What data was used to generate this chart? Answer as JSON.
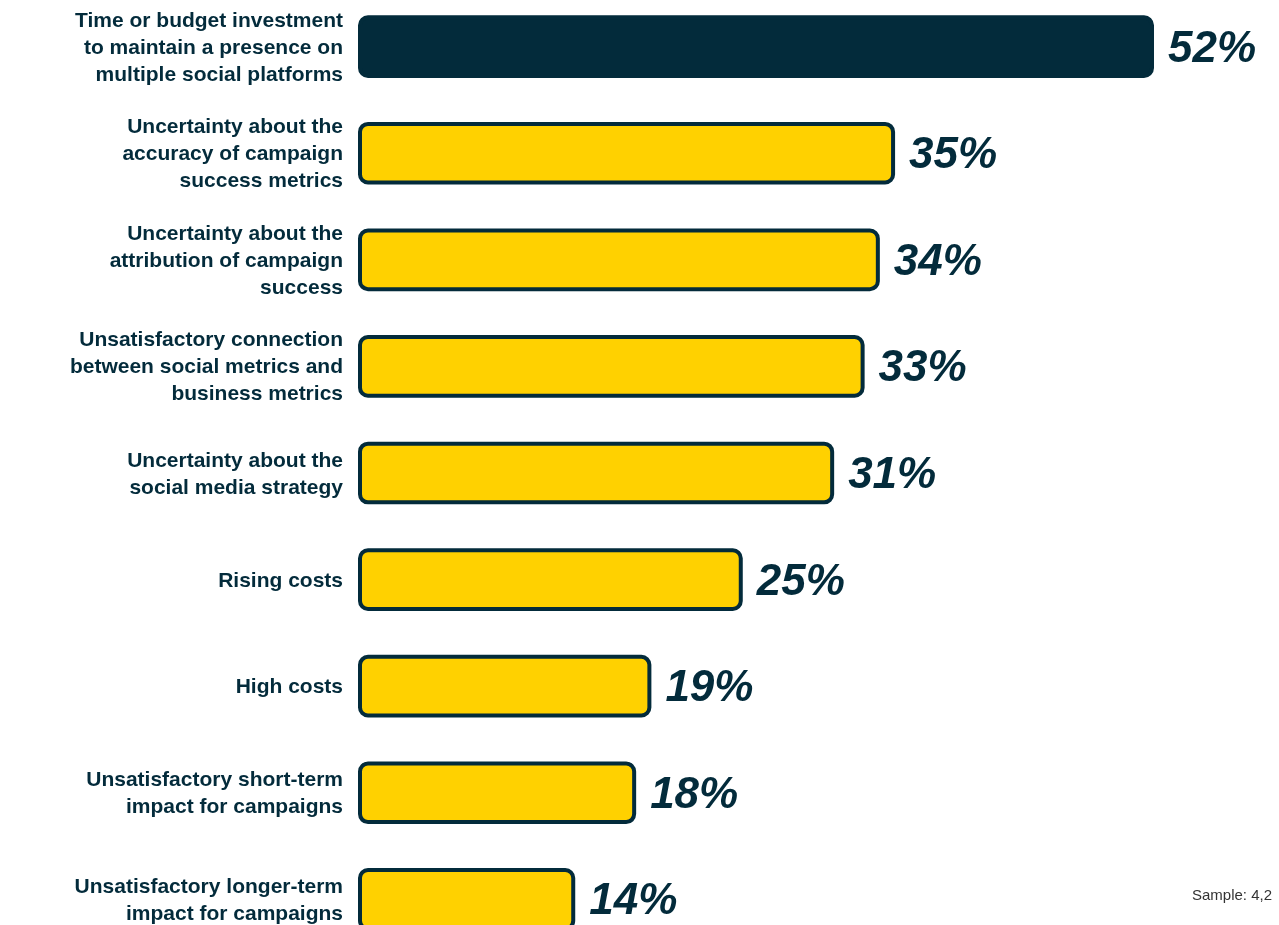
{
  "chart_data": {
    "type": "bar",
    "orientation": "horizontal",
    "categories": [
      "Time or budget investment to maintain a presence on multiple social platforms",
      "Uncertainty about the accuracy of campaign success metrics",
      "Uncertainty about the attribution of campaign success",
      "Unsatisfactory connection between social metrics and business metrics",
      "Uncertainty about the social media strategy",
      "Rising costs",
      "High costs",
      "Unsatisfactory short-term impact for campaigns",
      "Unsatisfactory longer-term impact for campaigns"
    ],
    "values": [
      52,
      35,
      34,
      33,
      31,
      25,
      19,
      18,
      14
    ],
    "colors": [
      "#032b3b",
      "#ffd100",
      "#ffd100",
      "#ffd100",
      "#ffd100",
      "#ffd100",
      "#ffd100",
      "#ffd100",
      "#ffd100"
    ],
    "value_labels": [
      "52%",
      "35%",
      "34%",
      "33%",
      "31%",
      "25%",
      "19%",
      "18%",
      "14%"
    ],
    "annotations": [
      "Sample: 4,2"
    ]
  }
}
